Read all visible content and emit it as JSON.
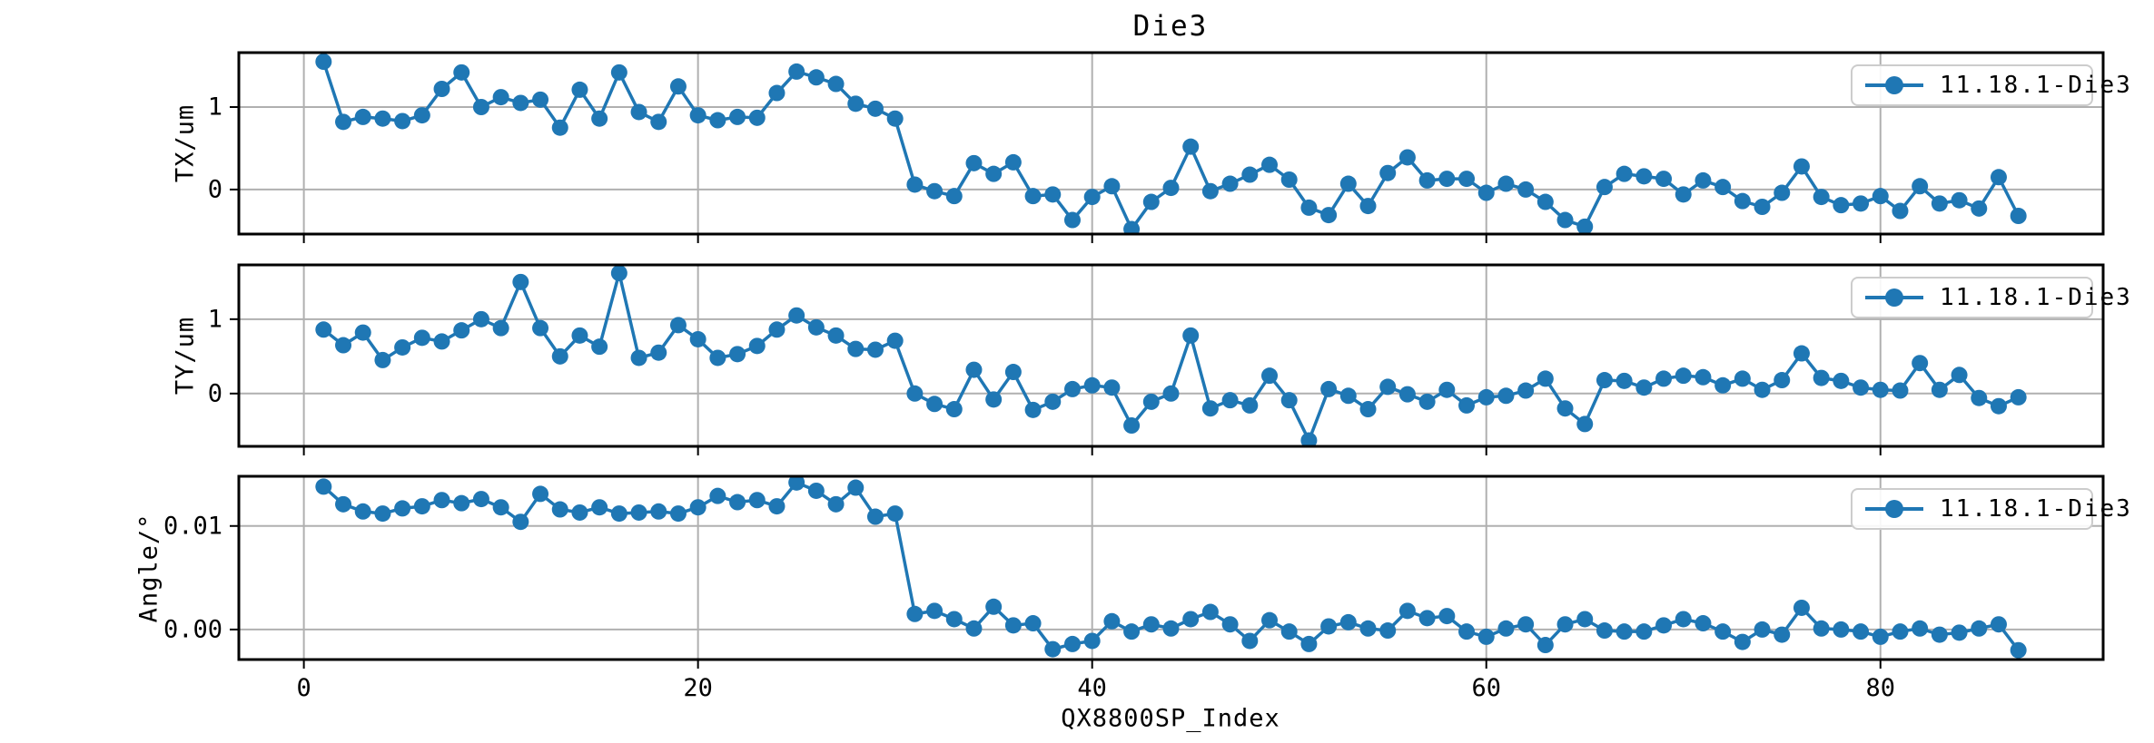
{
  "title": "Die3",
  "legend_label": "11.18.1-Die3",
  "x_axis": {
    "label": "QX8800SP_Index",
    "ticks": [
      0,
      20,
      40,
      60,
      80
    ],
    "tick_labels": [
      "0",
      "20",
      "40",
      "60",
      "80"
    ],
    "lim": [
      -3.3,
      91.3
    ]
  },
  "colors": {
    "line": "#1f77b4",
    "grid": "#b0b0b0",
    "spine": "#000000",
    "legend_border": "#cccccc"
  },
  "chart_data": {
    "type": "line",
    "title": "Die3",
    "xlabel": "QX8800SP_Index",
    "legend_entries": [
      "11.18.1-Die3"
    ],
    "legend_position": "upper right",
    "grid": true,
    "marker": "o",
    "x_start": 1,
    "x": [
      1,
      2,
      3,
      4,
      5,
      6,
      7,
      8,
      9,
      10,
      11,
      12,
      13,
      14,
      15,
      16,
      17,
      18,
      19,
      20,
      21,
      22,
      23,
      24,
      25,
      26,
      27,
      28,
      29,
      30,
      31,
      32,
      33,
      34,
      35,
      36,
      37,
      38,
      39,
      40,
      41,
      42,
      43,
      44,
      45,
      46,
      47,
      48,
      49,
      50,
      51,
      52,
      53,
      54,
      55,
      56,
      57,
      58,
      59,
      60,
      61,
      62,
      63,
      64,
      65,
      66,
      67,
      68,
      69,
      70,
      71,
      72,
      73,
      74,
      75,
      76,
      77,
      78,
      79,
      80,
      81,
      82,
      83,
      84,
      85,
      86,
      87
    ],
    "subplots": [
      {
        "name": "TX",
        "ylabel": "TX/um",
        "yticks": [
          0,
          1
        ],
        "ytick_labels": [
          "0",
          "1"
        ],
        "ylim": [
          -0.54,
          1.66
        ],
        "legend": "11.18.1-Die3",
        "values": [
          1.55,
          0.82,
          0.88,
          0.86,
          0.83,
          0.9,
          1.22,
          1.42,
          1.0,
          1.12,
          1.05,
          1.09,
          0.75,
          1.21,
          0.86,
          1.42,
          0.94,
          0.82,
          1.25,
          0.9,
          0.84,
          0.88,
          0.87,
          1.17,
          1.43,
          1.36,
          1.28,
          1.04,
          0.98,
          0.86,
          0.06,
          -0.02,
          -0.08,
          0.32,
          0.19,
          0.33,
          -0.08,
          -0.06,
          -0.37,
          -0.09,
          0.04,
          -0.48,
          -0.15,
          0.02,
          0.52,
          -0.02,
          0.07,
          0.18,
          0.3,
          0.12,
          -0.22,
          -0.31,
          0.07,
          -0.2,
          0.2,
          0.39,
          0.11,
          0.13,
          0.13,
          -0.04,
          0.07,
          0.0,
          -0.15,
          -0.37,
          -0.45,
          0.03,
          0.19,
          0.16,
          0.13,
          -0.06,
          0.11,
          0.03,
          -0.14,
          -0.21,
          -0.04,
          0.28,
          -0.09,
          -0.19,
          -0.17,
          -0.08,
          -0.26,
          0.04,
          -0.17,
          -0.13,
          -0.23,
          0.15,
          -0.32
        ]
      },
      {
        "name": "TY",
        "ylabel": "TY/um",
        "yticks": [
          0,
          1
        ],
        "ytick_labels": [
          "0",
          "1"
        ],
        "ylim": [
          -0.71,
          1.73
        ],
        "legend": "11.18.1-Die3",
        "values": [
          0.86,
          0.65,
          0.82,
          0.45,
          0.62,
          0.75,
          0.7,
          0.85,
          1.0,
          0.88,
          1.5,
          0.88,
          0.5,
          0.78,
          0.63,
          1.62,
          0.48,
          0.55,
          0.92,
          0.73,
          0.48,
          0.53,
          0.64,
          0.86,
          1.05,
          0.89,
          0.78,
          0.6,
          0.59,
          0.71,
          0.0,
          -0.14,
          -0.21,
          0.32,
          -0.08,
          0.29,
          -0.22,
          -0.11,
          0.06,
          0.11,
          0.08,
          -0.43,
          -0.11,
          0.0,
          0.78,
          -0.2,
          -0.09,
          -0.16,
          0.24,
          -0.09,
          -0.63,
          0.06,
          -0.03,
          -0.21,
          0.09,
          -0.01,
          -0.11,
          0.05,
          -0.16,
          -0.05,
          -0.03,
          0.04,
          0.2,
          -0.2,
          -0.41,
          0.18,
          0.17,
          0.08,
          0.2,
          0.24,
          0.22,
          0.11,
          0.2,
          0.05,
          0.18,
          0.54,
          0.21,
          0.17,
          0.08,
          0.05,
          0.04,
          0.41,
          0.05,
          0.25,
          -0.06,
          -0.17,
          -0.05
        ]
      },
      {
        "name": "Angle",
        "ylabel": "Angle/°",
        "yticks": [
          0.0,
          0.01
        ],
        "ytick_labels": [
          "0.00",
          "0.01"
        ],
        "ylim": [
          -0.0029,
          0.0148
        ],
        "legend": "11.18.1-Die3",
        "values": [
          0.0138,
          0.0121,
          0.0114,
          0.0112,
          0.0117,
          0.0119,
          0.0125,
          0.0122,
          0.0126,
          0.0118,
          0.0104,
          0.0131,
          0.0116,
          0.0113,
          0.0118,
          0.0112,
          0.0113,
          0.0114,
          0.0112,
          0.0118,
          0.0129,
          0.0123,
          0.0125,
          0.0119,
          0.0142,
          0.0134,
          0.0121,
          0.0137,
          0.0109,
          0.0112,
          0.0015,
          0.0018,
          0.001,
          0.0001,
          0.0022,
          0.0004,
          0.0006,
          -0.0019,
          -0.0014,
          -0.0011,
          0.0008,
          -0.0002,
          0.0005,
          0.0001,
          0.001,
          0.0017,
          0.0005,
          -0.0011,
          0.0009,
          -0.0002,
          -0.0014,
          0.0003,
          0.0007,
          0.0001,
          -0.0001,
          0.0018,
          0.0011,
          0.0013,
          -0.0002,
          -0.0007,
          0.0001,
          0.0005,
          -0.0015,
          0.0005,
          0.001,
          -0.0001,
          -0.0002,
          -0.0002,
          0.0004,
          0.001,
          0.0006,
          -0.0002,
          -0.0012,
          0.0,
          -0.0005,
          0.0021,
          0.0001,
          0.0,
          -0.0002,
          -0.0007,
          -0.0002,
          0.0001,
          -0.0005,
          -0.0003,
          0.0001,
          0.0005,
          -0.002
        ]
      }
    ]
  }
}
